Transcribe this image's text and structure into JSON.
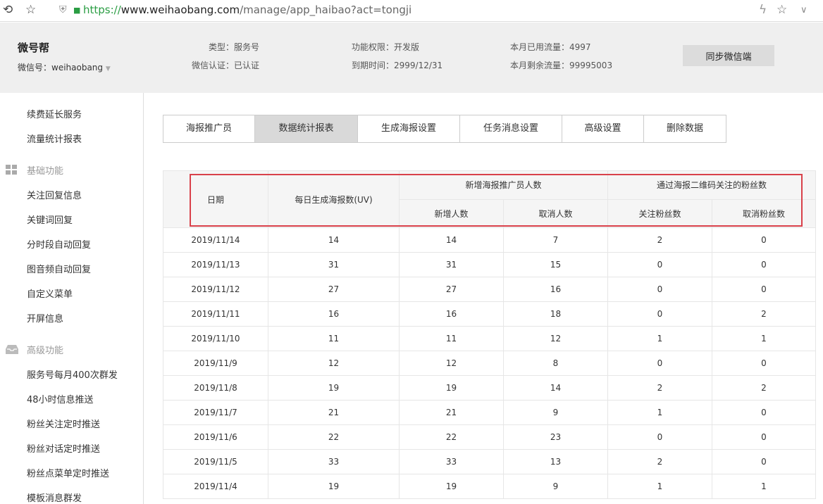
{
  "browser": {
    "url_scheme": "https://",
    "url_host": "www.weihaobang.com",
    "url_path": "/manage/app_haibao?act=tongji",
    "icons": [
      "back-icon",
      "star-icon",
      "shield-icon",
      "lock-icon",
      "lightning-icon",
      "star-icon",
      "chevron-down-icon"
    ]
  },
  "header": {
    "brand": "微号帮",
    "account": "微信号：weihaobang",
    "type": "类型：服务号",
    "verified": "微信认证：已认证",
    "permission": "功能权限：开发版",
    "expiry": "到期时间：2999/12/31",
    "used_traffic": "本月已用流量：4997",
    "remaining_traffic": "本月剩余流量：99995003",
    "sync_button": "同步微信端"
  },
  "sidebar": {
    "top_items": [
      "续费延长服务",
      "流量统计报表"
    ],
    "group1": "基础功能",
    "group1_items": [
      "关注回复信息",
      "关键词回复",
      "分时段自动回复",
      "图音频自动回复",
      "自定义菜单",
      "开屏信息"
    ],
    "group2": "高级功能",
    "group2_items": [
      "服务号每月400次群发",
      "48小时信息推送",
      "粉丝关注定时推送",
      "粉丝对话定时推送",
      "粉丝点菜单定时推送",
      "模板消息群发"
    ]
  },
  "tabs": [
    {
      "label": "海报推广员",
      "active": false
    },
    {
      "label": "数据统计报表",
      "active": true
    },
    {
      "label": "生成海报设置",
      "active": false
    },
    {
      "label": "任务消息设置",
      "active": false
    },
    {
      "label": "高级设置",
      "active": false
    },
    {
      "label": "删除数据",
      "active": false
    }
  ],
  "table": {
    "date": "日期",
    "daily": "每日生成海报数(UV)",
    "group_a": "新增海报推广员人数",
    "group_b": "通过海报二维码关注的粉丝数",
    "sub": [
      "新增人数",
      "取消人数",
      "关注粉丝数",
      "取消粉丝数"
    ],
    "rows": [
      [
        "2019/11/14",
        "14",
        "14",
        "7",
        "2",
        "0"
      ],
      [
        "2019/11/13",
        "31",
        "31",
        "15",
        "0",
        "0"
      ],
      [
        "2019/11/12",
        "27",
        "27",
        "16",
        "0",
        "0"
      ],
      [
        "2019/11/11",
        "16",
        "16",
        "18",
        "0",
        "2"
      ],
      [
        "2019/11/10",
        "11",
        "11",
        "12",
        "1",
        "1"
      ],
      [
        "2019/11/9",
        "12",
        "12",
        "8",
        "0",
        "0"
      ],
      [
        "2019/11/8",
        "19",
        "19",
        "14",
        "2",
        "2"
      ],
      [
        "2019/11/7",
        "21",
        "21",
        "9",
        "1",
        "0"
      ],
      [
        "2019/11/6",
        "22",
        "22",
        "23",
        "0",
        "0"
      ],
      [
        "2019/11/5",
        "33",
        "33",
        "13",
        "2",
        "0"
      ],
      [
        "2019/11/4",
        "19",
        "19",
        "9",
        "1",
        "1"
      ]
    ]
  },
  "highlight_color": "#d9414a"
}
